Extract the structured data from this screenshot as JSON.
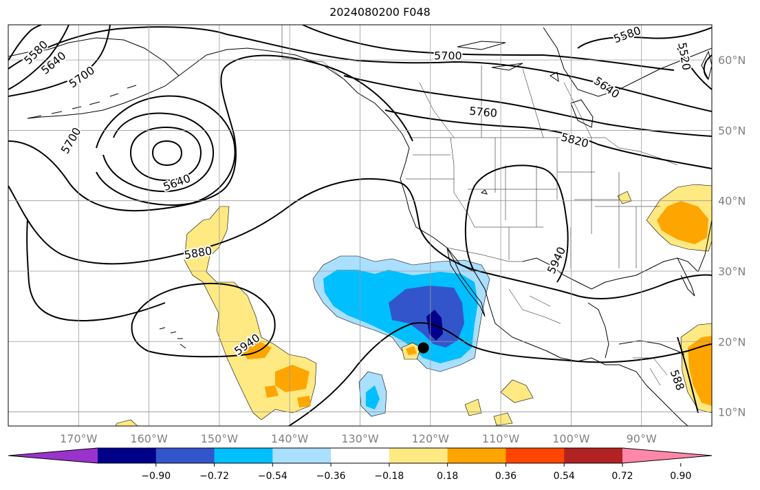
{
  "title": "2024080200 F048",
  "map": {
    "lon_range": [
      -180,
      -80
    ],
    "lat_range": [
      8,
      65
    ],
    "lon_ticks": [
      {
        "value": -170,
        "label": "170°W"
      },
      {
        "value": -160,
        "label": "160°W"
      },
      {
        "value": -150,
        "label": "150°W"
      },
      {
        "value": -140,
        "label": "140°W"
      },
      {
        "value": -130,
        "label": "130°W"
      },
      {
        "value": -120,
        "label": "120°W"
      },
      {
        "value": -110,
        "label": "110°W"
      },
      {
        "value": -100,
        "label": "100°W"
      },
      {
        "value": -90,
        "label": "90°W"
      }
    ],
    "lat_ticks": [
      {
        "value": 10,
        "label": "10°N"
      },
      {
        "value": 20,
        "label": "20°N"
      },
      {
        "value": 30,
        "label": "30°N"
      },
      {
        "value": 40,
        "label": "40°N"
      },
      {
        "value": 50,
        "label": "50°N"
      },
      {
        "value": 60,
        "label": "60°N"
      }
    ],
    "grid": true,
    "contour_labels": [
      {
        "text": "5580",
        "lon": -176.0,
        "lat": 61.0,
        "angle": -45
      },
      {
        "text": "5640",
        "lon": -173.5,
        "lat": 59.5,
        "angle": -40
      },
      {
        "text": "5700",
        "lon": -169.5,
        "lat": 57.5,
        "angle": -35
      },
      {
        "text": "5700",
        "lon": -171.0,
        "lat": 48.5,
        "angle": -60
      },
      {
        "text": "5640",
        "lon": -156.0,
        "lat": 42.5,
        "angle": -20
      },
      {
        "text": "5880",
        "lon": -153.0,
        "lat": 32.5,
        "angle": -10
      },
      {
        "text": "5940",
        "lon": -146.0,
        "lat": 19.5,
        "angle": -35
      },
      {
        "text": "5700",
        "lon": -117.5,
        "lat": 60.5,
        "angle": 0
      },
      {
        "text": "5760",
        "lon": -112.5,
        "lat": 52.5,
        "angle": 5
      },
      {
        "text": "5820",
        "lon": -99.5,
        "lat": 48.5,
        "angle": 15
      },
      {
        "text": "5640",
        "lon": -95.0,
        "lat": 56.0,
        "angle": 35
      },
      {
        "text": "5580",
        "lon": -92.0,
        "lat": 63.5,
        "angle": -20
      },
      {
        "text": "5520",
        "lon": -84.0,
        "lat": 60.5,
        "angle": 80
      },
      {
        "text": "5940",
        "lon": -102.0,
        "lat": 31.5,
        "angle": -65
      },
      {
        "text": "588",
        "lon": -85.0,
        "lat": 14.5,
        "angle": 70
      }
    ],
    "marker": {
      "lon": -121.0,
      "lat": 19.1
    }
  },
  "colorbar": {
    "colors": [
      "#9933cc",
      "#00008b",
      "#3355cc",
      "#00bfff",
      "#aadfff",
      "#ffffff",
      "#ffe983",
      "#ffa500",
      "#ff4500",
      "#b22222",
      "#ff88aa"
    ],
    "labels": [
      "−0.90",
      "−0.72",
      "−0.54",
      "−0.36",
      "−0.18",
      "0.18",
      "0.36",
      "0.54",
      "0.72",
      "0.90"
    ]
  }
}
